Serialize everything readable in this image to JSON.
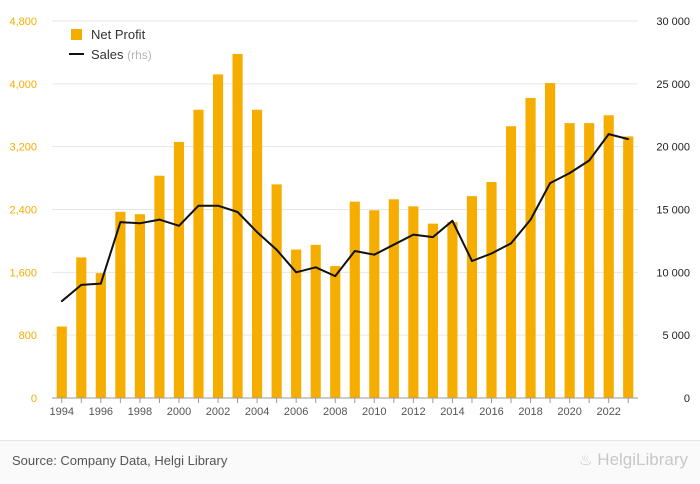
{
  "chart_data": {
    "type": "bar",
    "categories": [
      "1994",
      "1995",
      "1996",
      "1997",
      "1998",
      "1999",
      "2000",
      "2001",
      "2002",
      "2003",
      "2004",
      "2005",
      "2006",
      "2007",
      "2008",
      "2009",
      "2010",
      "2011",
      "2012",
      "2013",
      "2014",
      "2015",
      "2016",
      "2017",
      "2018",
      "2019",
      "2020",
      "2021",
      "2022",
      "2023"
    ],
    "x_tick_labels": [
      "1994",
      "1996",
      "1998",
      "2000",
      "2002",
      "2004",
      "2006",
      "2008",
      "2010",
      "2012",
      "2014",
      "2016",
      "2018",
      "2020",
      "2022"
    ],
    "series": [
      {
        "name": "Net Profit",
        "type": "bar",
        "axis": "left",
        "color": "#f5ad00",
        "values": [
          910,
          1790,
          1590,
          2370,
          2340,
          2830,
          3260,
          3670,
          4120,
          4380,
          3670,
          2720,
          1890,
          1950,
          1680,
          2500,
          2390,
          2530,
          2440,
          2220,
          2240,
          2570,
          2750,
          3460,
          3820,
          4010,
          3500,
          3500,
          3600,
          3330
        ]
      },
      {
        "name": "Sales",
        "name_suffix": "(rhs)",
        "type": "line",
        "axis": "right",
        "color": "#111111",
        "values": [
          7700,
          9000,
          9100,
          14000,
          13900,
          14200,
          13700,
          15300,
          15300,
          14800,
          13200,
          11800,
          10000,
          10400,
          9700,
          11700,
          11400,
          12200,
          13000,
          12800,
          14100,
          10900,
          11500,
          12300,
          14200,
          17100,
          17900,
          18900,
          21000,
          20600
        ]
      }
    ],
    "y_left": {
      "ticks": [
        0,
        800,
        1600,
        2400,
        3200,
        4000,
        4800
      ],
      "tick_labels": [
        "0",
        "800",
        "1,600",
        "2,400",
        "3,200",
        "4,000",
        "4,800"
      ],
      "range": [
        0,
        4800
      ],
      "color": "#f5ad00"
    },
    "y_right": {
      "ticks": [
        0,
        5000,
        10000,
        15000,
        20000,
        25000,
        30000
      ],
      "tick_labels": [
        "0",
        "5 000",
        "10 000",
        "15 000",
        "20 000",
        "25 000",
        "30 000"
      ],
      "range": [
        0,
        30000
      ],
      "color": "#222222"
    },
    "grid": true,
    "legend_position": "top-left",
    "title": "",
    "xlabel": "",
    "ylabel": ""
  },
  "footer": {
    "source": "Source: Company Data, Helgi Library",
    "brand": "HelgiLibrary",
    "brand_icon": "helgi-library-logo-icon"
  }
}
